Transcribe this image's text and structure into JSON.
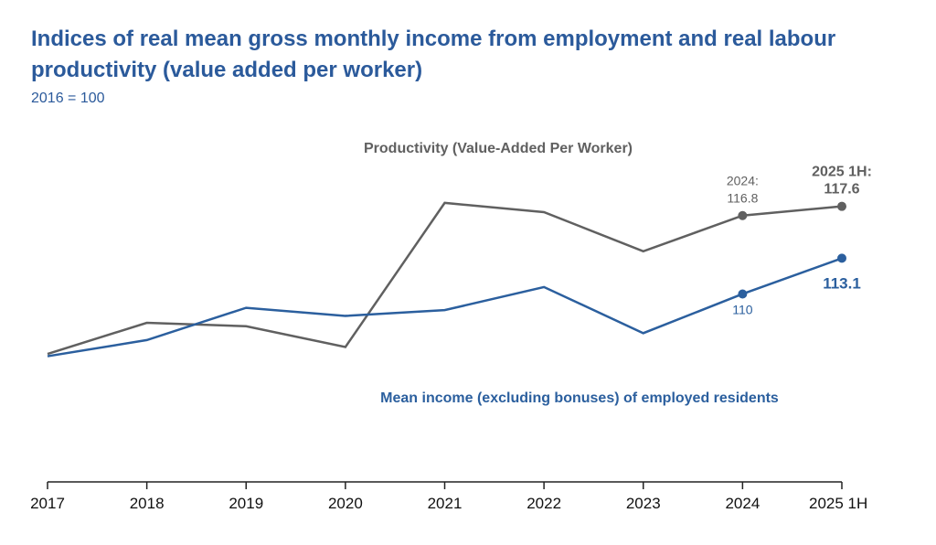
{
  "chart_data": {
    "type": "line",
    "title": "Indices of real mean gross monthly income from employment and real labour productivity (value added per worker)",
    "subtitle": "2016 = 100",
    "categories": [
      "2017",
      "2018",
      "2019",
      "2020",
      "2021",
      "2022",
      "2023",
      "2024",
      "2025 1H"
    ],
    "series": [
      {
        "name": "Productivity (Value-Added Per Worker)",
        "color": "#606060",
        "values": [
          104.8,
          107.5,
          107.2,
          105.4,
          117.9,
          117.1,
          113.7,
          116.8,
          117.6
        ]
      },
      {
        "name": "Mean income (excluding bonuses) of employed residents",
        "color": "#2b5f9e",
        "values": [
          104.6,
          106.0,
          108.8,
          108.1,
          108.6,
          110.6,
          106.6,
          110.0,
          113.1
        ]
      }
    ],
    "annotations": [
      "2024:",
      "2025 1H:"
    ],
    "ylim": [
      93.7,
      123.6
    ],
    "grid": false
  }
}
